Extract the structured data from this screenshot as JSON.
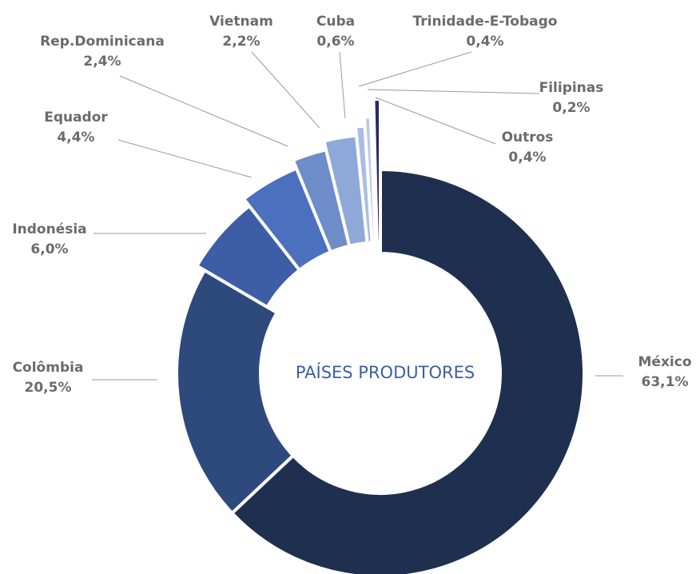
{
  "chart_data": {
    "type": "donut",
    "center_label": "PAÍSES PRODUTORES",
    "categories": [
      "México",
      "Colômbia",
      "Indonésia",
      "Equador",
      "Rep.Dominicana",
      "Vietnam",
      "Cuba",
      "Trinidade-E-Tobago",
      "Filipinas",
      "Outros"
    ],
    "values": [
      63.1,
      20.5,
      6.0,
      4.4,
      2.4,
      2.2,
      0.6,
      0.4,
      0.2,
      0.4
    ],
    "value_labels": [
      "63,1%",
      "20,5%",
      "6,0%",
      "4,4%",
      "2,4%",
      "2,2%",
      "0,6%",
      "0,4%",
      "0,2%",
      "0,4%"
    ],
    "colors": [
      "#1f2f50",
      "#2e4a7d",
      "#3d5ea6",
      "#4a70be",
      "#6e8cc8",
      "#8fa8da",
      "#a9bde6",
      "#b9c9ea",
      "#c8d4ee",
      "#262a66"
    ]
  }
}
